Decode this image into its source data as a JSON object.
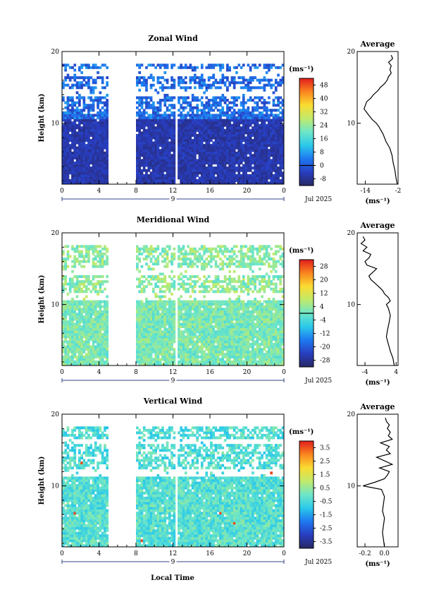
{
  "figure": {
    "xlabel": "Local Time",
    "date_label": "Jul 2025"
  },
  "chart_data": [
    {
      "id": "zonal",
      "type": "heatmap",
      "title": "Zonal Wind",
      "ylabel": "Height (km)",
      "x_ticks": [
        "0",
        "4",
        "8",
        "12",
        "16",
        "20",
        "0"
      ],
      "y_ticks": [
        "20",
        "10"
      ],
      "xlim": [
        0,
        24
      ],
      "ylim": [
        1.5,
        20
      ],
      "day_marker": "9",
      "unit_label": "(ms⁻¹)",
      "colorbar_ticks": [
        "48",
        "40",
        "32",
        "24",
        "16",
        "8",
        "0",
        "-8"
      ],
      "colorbar_range": [
        -12,
        52
      ],
      "zero_line_value": 0,
      "no_data_x": [
        5,
        7.8
      ],
      "profile": {
        "title": "Average",
        "xlabel": "(ms⁻¹)",
        "x_ticks": [
          "-14",
          "-2"
        ],
        "x_tick_values": [
          -14,
          -2
        ],
        "xlim": [
          -17,
          -2
        ],
        "y_ticks": [
          "20",
          "10"
        ],
        "heights": [
          1.5,
          2.5,
          3.5,
          4.5,
          5.5,
          6.5,
          7.5,
          8.5,
          9.5,
          10,
          10.5,
          11,
          11.5,
          12,
          12.5,
          13,
          13.5,
          14,
          14.5,
          15,
          15.5,
          16,
          16.5,
          17,
          17.5,
          18,
          18.5,
          19,
          19.5
        ],
        "values": [
          -2.3,
          -2.8,
          -3.2,
          -3.8,
          -4.2,
          -5.0,
          -6.5,
          -7.5,
          -9.0,
          -10.0,
          -11.5,
          -12.5,
          -13.5,
          -14.5,
          -14.0,
          -13.5,
          -12.0,
          -11.0,
          -9.5,
          -8.5,
          -7.0,
          -6.0,
          -5.5,
          -4.5,
          -5.0,
          -4.5,
          -5.5,
          -4.0,
          -4.5
        ]
      }
    },
    {
      "id": "meridional",
      "type": "heatmap",
      "title": "Meridional Wind",
      "ylabel": "Height (km)",
      "x_ticks": [
        "0",
        "4",
        "8",
        "12",
        "16",
        "20",
        "0"
      ],
      "y_ticks": [
        "20",
        "10"
      ],
      "xlim": [
        0,
        24
      ],
      "ylim": [
        1.5,
        20
      ],
      "day_marker": "9",
      "unit_label": "(ms⁻¹)",
      "colorbar_ticks": [
        "28",
        "20",
        "12",
        "4",
        "-4",
        "-12",
        "-20",
        "-28"
      ],
      "colorbar_range": [
        -32,
        32
      ],
      "zero_line_value": 0,
      "no_data_x": [
        5,
        7.8
      ],
      "profile": {
        "title": "Average",
        "xlabel": "(ms⁻¹)",
        "x_ticks": [
          "-4",
          "4"
        ],
        "x_tick_values": [
          -4,
          4
        ],
        "xlim": [
          -6,
          4.5
        ],
        "y_ticks": [
          "20",
          "10"
        ],
        "heights": [
          1.5,
          2.5,
          3.5,
          4.5,
          5.5,
          6.5,
          7.5,
          8.5,
          9.5,
          10,
          10.5,
          11,
          11.5,
          12,
          12.5,
          13,
          13.5,
          14,
          14.5,
          15,
          15.5,
          16,
          16.5,
          17,
          17.5,
          18,
          18.5,
          19,
          19.5
        ],
        "values": [
          3.5,
          3.2,
          2.5,
          2.0,
          1.5,
          1.8,
          2.2,
          2.5,
          2.0,
          1.5,
          2.5,
          2.0,
          1.0,
          0.5,
          -0.5,
          -1.5,
          -2.5,
          -3.0,
          -2.0,
          -1.0,
          -3.5,
          -4.0,
          -3.0,
          -2.5,
          -4.5,
          -3.5,
          -5.0,
          -4.0,
          -4.5
        ]
      }
    },
    {
      "id": "vertical",
      "type": "heatmap",
      "title": "Vertical Wind",
      "ylabel": "Height (km)",
      "xlabel": "Local Time",
      "x_ticks": [
        "0",
        "4",
        "8",
        "12",
        "16",
        "20",
        "0"
      ],
      "y_ticks": [
        "20",
        "10"
      ],
      "xlim": [
        0,
        24
      ],
      "ylim": [
        1.5,
        20
      ],
      "day_marker": "9",
      "unit_label": "(ms⁻¹)",
      "colorbar_ticks": [
        "3.5",
        "2.5",
        "1.5",
        "0.5",
        "-0.5",
        "-1.5",
        "-2.5",
        "-3.5"
      ],
      "colorbar_range": [
        -4,
        4
      ],
      "no_data_x": [
        5,
        7.8
      ],
      "profile": {
        "title": "Average",
        "xlabel": "(ms⁻¹)",
        "x_ticks": [
          "-0.2",
          "0.0"
        ],
        "x_tick_values": [
          -0.2,
          0.0
        ],
        "xlim": [
          -0.28,
          0.14
        ],
        "y_ticks": [
          "20",
          "10"
        ],
        "heights": [
          1.5,
          2.5,
          3.5,
          4.5,
          5.5,
          6.5,
          7.5,
          8.5,
          9.5,
          10,
          10.5,
          11,
          11.5,
          12,
          12.5,
          13,
          13.5,
          14,
          14.5,
          15,
          15.5,
          16,
          16.5,
          17,
          17.5,
          18,
          18.5,
          19,
          19.5
        ],
        "values": [
          0.0,
          -0.01,
          -0.02,
          -0.01,
          0.0,
          -0.02,
          -0.01,
          0.0,
          -0.03,
          -0.22,
          -0.1,
          0.0,
          0.03,
          0.05,
          -0.05,
          0.08,
          0.0,
          -0.08,
          0.06,
          0.02,
          0.05,
          -0.04,
          0.08,
          0.04,
          0.06,
          0.03,
          0.05,
          0.02,
          0.01
        ]
      }
    }
  ]
}
